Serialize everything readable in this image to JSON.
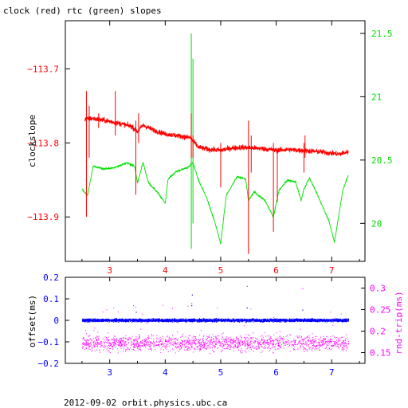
{
  "title": "clock (red) rtc (green) slopes",
  "footer": "2012-09-02  orbit.physics.ubc.ca",
  "colors": {
    "clock": "#ff0000",
    "rtc": "#00e000",
    "offset": "#0000ff",
    "rndtrip": "#ff00ff",
    "axis": "#000000",
    "left_tick_top": "#ff0000",
    "right_tick_top": "#00e000",
    "bottom_tick": "#0000ff",
    "top_x_tick": "#ff0000"
  },
  "chart_data": [
    {
      "type": "line",
      "name": "top-panel",
      "xlim": [
        2.2,
        7.6
      ],
      "x_ticks": [
        3,
        4,
        5,
        6,
        7
      ],
      "ylabel_left": "clockslope",
      "ylim_left": [
        -113.96,
        -113.635
      ],
      "yticks_left": [
        -113.7,
        -113.8,
        -113.9
      ],
      "ylim_right": [
        19.7,
        21.6
      ],
      "yticks_right": [
        20,
        20.5,
        21,
        21.5
      ],
      "series": [
        {
          "name": "clock (red)",
          "axis": "left",
          "x": [
            2.55,
            2.7,
            2.85,
            3.0,
            3.2,
            3.4,
            3.5,
            3.6,
            3.8,
            4.0,
            4.2,
            4.45,
            4.6,
            4.8,
            5.0,
            5.2,
            5.4,
            5.6,
            5.8,
            6.0,
            6.2,
            6.4,
            6.6,
            6.8,
            7.0,
            7.15,
            7.3
          ],
          "y": [
            -113.768,
            -113.767,
            -113.769,
            -113.771,
            -113.774,
            -113.778,
            -113.785,
            -113.776,
            -113.783,
            -113.788,
            -113.79,
            -113.793,
            -113.806,
            -113.809,
            -113.81,
            -113.807,
            -113.806,
            -113.807,
            -113.808,
            -113.81,
            -113.809,
            -113.81,
            -113.811,
            -113.812,
            -113.814,
            -113.815,
            -113.812
          ]
        },
        {
          "name": "rtc (green)",
          "axis": "right",
          "x": [
            2.5,
            2.6,
            2.7,
            2.9,
            3.1,
            3.3,
            3.45,
            3.5,
            3.6,
            3.7,
            3.85,
            4.0,
            4.05,
            4.2,
            4.4,
            4.5,
            4.6,
            4.75,
            4.9,
            5.0,
            5.1,
            5.3,
            5.45,
            5.5,
            5.6,
            5.8,
            5.95,
            6.05,
            6.2,
            6.35,
            6.45,
            6.5,
            6.6,
            6.75,
            6.95,
            7.05,
            7.2,
            7.3
          ],
          "y": [
            20.27,
            20.22,
            20.45,
            20.43,
            20.44,
            20.48,
            20.45,
            20.32,
            20.48,
            20.32,
            20.25,
            20.16,
            20.35,
            20.41,
            20.44,
            20.48,
            20.34,
            20.2,
            20.0,
            19.84,
            20.22,
            20.37,
            20.35,
            20.18,
            20.25,
            20.18,
            20.05,
            20.26,
            20.34,
            20.33,
            20.18,
            20.27,
            20.36,
            20.22,
            20.02,
            19.85,
            20.26,
            20.38
          ]
        }
      ]
    },
    {
      "type": "scatter",
      "name": "bottom-panel",
      "xlim": [
        2.2,
        7.6
      ],
      "x_ticks": [
        3,
        4,
        5,
        6,
        7
      ],
      "ylabel_left": "offset(ms)",
      "ylim_left": [
        -0.2,
        0.2
      ],
      "yticks_left": [
        0.2,
        0.1,
        0,
        -0.1,
        -0.2
      ],
      "ylabel_right": "rnd-trip(ms)",
      "ylim_right": [
        0.125,
        0.325
      ],
      "yticks_right": [
        0.3,
        0.25,
        0.2,
        0.15
      ],
      "series": [
        {
          "name": "offset",
          "axis": "left",
          "x_range": [
            2.5,
            7.3
          ],
          "y_center": 0.0,
          "y_spread": 0.012
        },
        {
          "name": "rnd-trip",
          "axis": "right",
          "x_range": [
            2.5,
            7.3
          ],
          "y_center": 0.172,
          "y_spread": 0.03
        }
      ]
    }
  ]
}
